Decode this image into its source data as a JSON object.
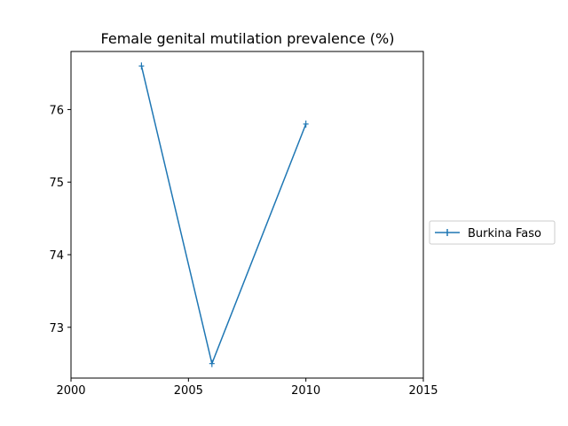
{
  "chart_data": {
    "type": "line",
    "title": "Female genital mutilation prevalence (%)",
    "xlabel": "",
    "ylabel": "",
    "xlim": [
      2000,
      2015
    ],
    "ylim": [
      72.3,
      76.8
    ],
    "xticks": [
      2000,
      2005,
      2010,
      2015
    ],
    "yticks": [
      73,
      74,
      75,
      76
    ],
    "grid": false,
    "legend_position": "right",
    "series": [
      {
        "name": "Burkina Faso",
        "color": "#1f77b4",
        "marker": "+",
        "x": [
          2003,
          2006,
          2010
        ],
        "y": [
          76.6,
          72.5,
          75.8
        ]
      }
    ]
  }
}
